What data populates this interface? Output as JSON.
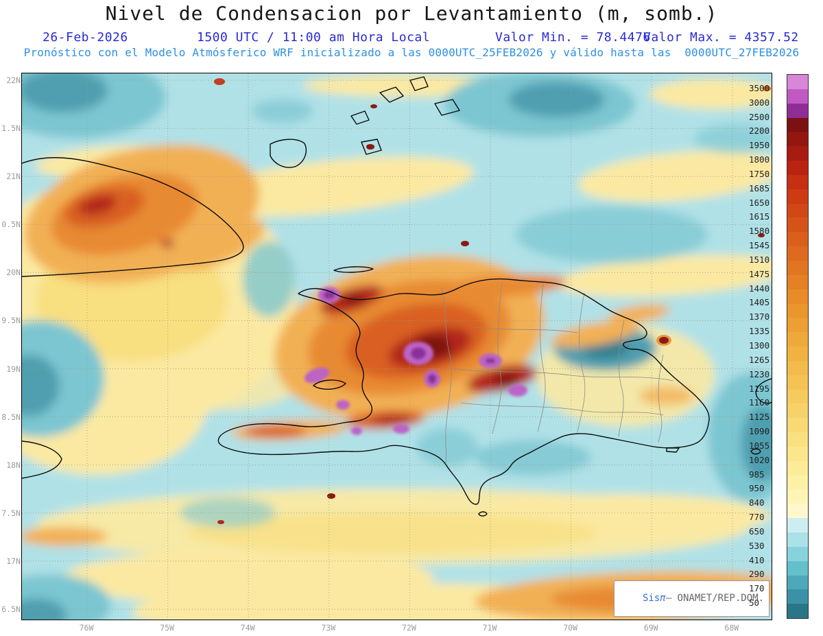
{
  "title": "Nivel de Condensacion por Levantamiento (m, somb.)",
  "header": {
    "date": "26-Feb-2026",
    "time": "1500 UTC / 11:00 am Hora Local",
    "min": "Valor Min. = 78.4476",
    "max": "Valor Max. = 4357.52",
    "model": "Pronóstico con el Modelo Atmósferico WRF inicializado a las 0000UTC_25FEB2026 y válido hasta las  0000UTC_27FEB2026"
  },
  "map": {
    "y_labels": [
      "22N",
      "1.5N",
      "21N",
      "0.5N",
      "20N",
      "9.5N",
      "19N",
      "8.5N",
      "18N",
      "7.5N",
      "17N",
      "6.5N"
    ],
    "x_labels": [
      "76W",
      "75W",
      "74W",
      "73W",
      "72W",
      "71W",
      "70W",
      "69W",
      "68W"
    ],
    "watermark": {
      "sis": "Sis",
      "pi": "π",
      "rest": "– ONAMET/REP.DOM."
    }
  },
  "colorbar": {
    "units": "m",
    "labels": [
      "3500",
      "3000",
      "2500",
      "2200",
      "1950",
      "1800",
      "1750",
      "1685",
      "1650",
      "1615",
      "1580",
      "1545",
      "1510",
      "1475",
      "1440",
      "1405",
      "1370",
      "1335",
      "1300",
      "1265",
      "1230",
      "1195",
      "1160",
      "1125",
      "1090",
      "1055",
      "1020",
      "985",
      "950",
      "840",
      "770",
      "650",
      "530",
      "410",
      "290",
      "170",
      "50"
    ],
    "colors": [
      "#d886d8",
      "#c05ac2",
      "#8f2d96",
      "#7c1113",
      "#931611",
      "#a81b10",
      "#b92410",
      "#c62f12",
      "#cd3b13",
      "#d24716",
      "#d65317",
      "#da5f1a",
      "#de6a1d",
      "#e17520",
      "#e58024",
      "#e88b28",
      "#eb952d",
      "#ed9f33",
      "#efa93a",
      "#f1b242",
      "#f3bb4b",
      "#f5c354",
      "#f6cb5e",
      "#f7d268",
      "#f8d973",
      "#fae07f",
      "#fbe68b",
      "#fcec98",
      "#fdf1a6",
      "#fef5b5",
      "#fff8cd",
      "#cdeef1",
      "#abe2e8",
      "#87d3dc",
      "#63c0cd",
      "#4ba9ba",
      "#3b92a6",
      "#2a7689"
    ]
  },
  "field": {
    "accent_colors": {
      "ocean_base": "#b0e1e7",
      "teal_mid": "#7cc6d1",
      "teal_dark": "#4f9fb0",
      "yellow_pale": "#fbe9a2",
      "orange_mid": "#f2b055",
      "orange_dark": "#d96020",
      "red": "#b3261a",
      "maroon": "#7d1410",
      "purple_light": "#bc63c6",
      "purple_dark": "#8a2d99"
    }
  }
}
